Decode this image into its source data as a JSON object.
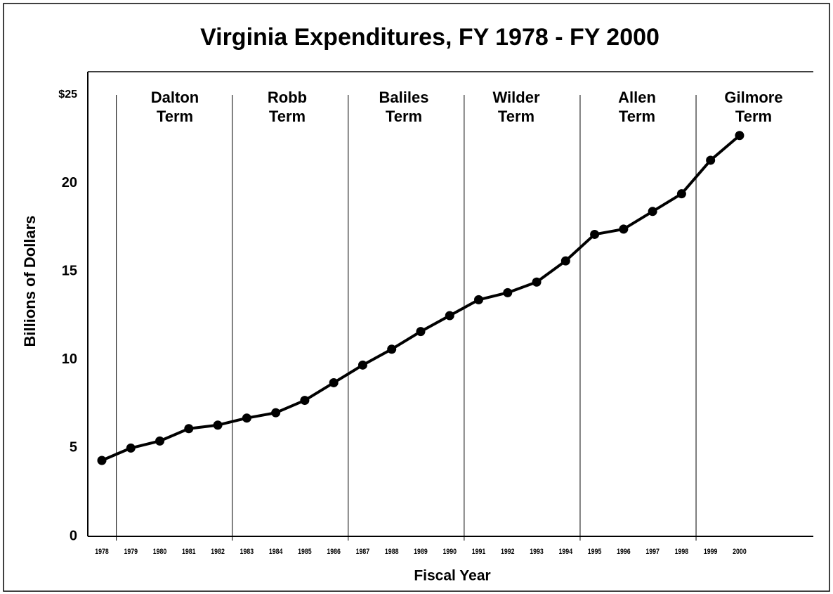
{
  "chart_data": {
    "type": "line",
    "title": "Virginia Expenditures, FY 1978 - FY 2000",
    "x_label": "Fiscal Year",
    "y_label": "Billions of  Dollars",
    "categories": [
      "1978",
      "1979",
      "1980",
      "1981",
      "1982",
      "1983",
      "1984",
      "1985",
      "1986",
      "1987",
      "1988",
      "1989",
      "1990",
      "1991",
      "1992",
      "1993",
      "1994",
      "1995",
      "1996",
      "1997",
      "1998",
      "1999",
      "2000"
    ],
    "values": [
      4.3,
      5.0,
      5.4,
      6.1,
      6.3,
      6.7,
      7.0,
      7.7,
      8.7,
      9.7,
      10.6,
      11.6,
      12.5,
      13.4,
      13.8,
      14.4,
      15.6,
      17.1,
      17.4,
      18.4,
      19.4,
      21.3,
      22.7
    ],
    "color": "#000000",
    "ylim": [
      0,
      25
    ],
    "yticks": [
      0,
      5,
      10,
      15,
      20,
      {
        "value": 25,
        "label": "$25"
      }
    ],
    "terms": [
      [
        "Dalton",
        "Term"
      ],
      [
        "Robb",
        "Term"
      ],
      [
        "Baliles",
        "Term"
      ],
      [
        "Wilder",
        "Term"
      ],
      [
        "Allen",
        "Term"
      ],
      [
        "Gilmore",
        "Term"
      ]
    ]
  }
}
